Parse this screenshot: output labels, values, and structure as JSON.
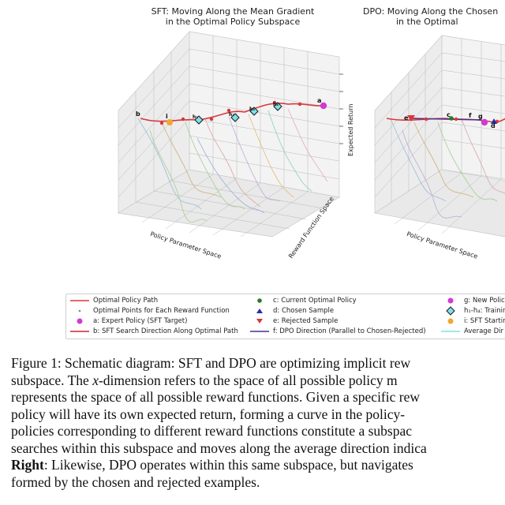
{
  "figure": {
    "left_title_line1": "SFT: Moving Along the Mean Gradient",
    "left_title_line2": "in the Optimal Policy Subspace",
    "right_title_line1": "DPO: Moving Along the Chosen",
    "right_title_line2": "in the Optimal",
    "axis_policy": "Policy Parameter Space",
    "axis_reward": "Reward Function Space",
    "axis_return": "Expected Return",
    "left_point_labels": [
      "b",
      "i",
      "h₁",
      "h₂",
      "h₃",
      "h₄",
      "a"
    ],
    "right_point_labels": [
      "e",
      "c",
      "f",
      "g",
      "d"
    ]
  },
  "legend": {
    "items": [
      {
        "symbol": "red-line",
        "label": "Optimal Policy Path"
      },
      {
        "symbol": "small-dot",
        "label": "Optimal Points for Each Reward Function"
      },
      {
        "symbol": "magenta-dot",
        "label": "a: Expert Policy (SFT Target)"
      },
      {
        "symbol": "red-line",
        "label": "b: SFT Search Direction Along Optimal Path"
      },
      {
        "symbol": "green-dot",
        "label": "c: Current Optimal Policy"
      },
      {
        "symbol": "blue-triangle",
        "label": "d: Chosen Sample"
      },
      {
        "symbol": "red-triangle",
        "label": "e: Rejected Sample"
      },
      {
        "symbol": "purple-line",
        "label": "f: DPO Direction (Parallel to Chosen-Rejected)"
      },
      {
        "symbol": "magenta-dot",
        "label": "g: New Polic"
      },
      {
        "symbol": "cyan-diamond",
        "label": "h₁-h₄: Trainin"
      },
      {
        "symbol": "orange-dot",
        "label": "i: SFT Startin"
      },
      {
        "symbol": "cyan-line",
        "label": "Average Dir"
      }
    ]
  },
  "caption": {
    "line1": "Figure 1: Schematic diagram: SFT and DPO are optimizing implicit rew",
    "line2_a": "subspace.  The ",
    "line2_var": "x",
    "line2_b": "-dimension refers to the space of all possible policy m",
    "line3": "represents the space of all possible reward functions. Given a specific rew",
    "line4": "policy will have its own expected return, forming a curve in the policy-",
    "line5": "policies corresponding to different reward functions constitute a subspac",
    "line6": "searches within this subspace and moves along the average direction indica",
    "line7_bold": "Right",
    "line7_rest": ": Likewise, DPO operates within this same subspace, but navigates",
    "line8": "formed by the chosen and rejected examples."
  }
}
